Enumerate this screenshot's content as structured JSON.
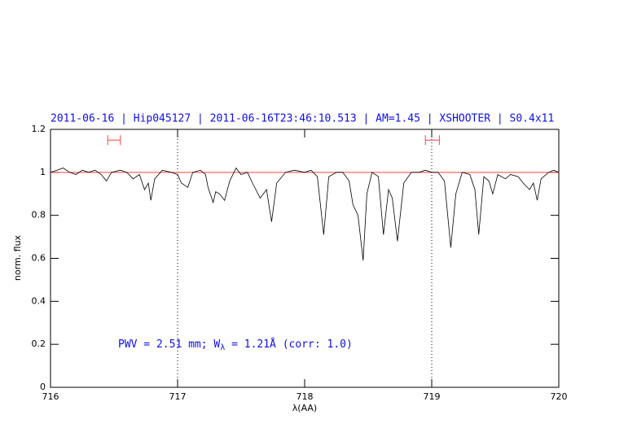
{
  "chart_data": {
    "type": "line",
    "title": "2011-06-16 | Hip045127 | 2011-06-16T23:46:10.513 | AM=1.45 | XSHOOTER | S0.4x11",
    "x_label": "λ(AA)",
    "y_label": "norm. flux",
    "annotation": {
      "text": "PWV = 2.51 mm; W",
      "subscript": "λ",
      "rest": " = 1.21Å (corr: 1.0)"
    },
    "color": "#000000",
    "x": [
      716.0,
      716.05,
      716.1,
      716.15,
      716.2,
      716.25,
      716.3,
      716.35,
      716.4,
      716.44,
      716.48,
      716.55,
      716.6,
      716.65,
      716.7,
      716.74,
      716.77,
      716.79,
      716.82,
      716.88,
      716.95,
      717.0,
      717.03,
      717.08,
      717.12,
      717.18,
      717.22,
      717.24,
      717.28,
      717.3,
      717.33,
      717.37,
      717.41,
      717.46,
      717.5,
      717.55,
      717.59,
      717.65,
      717.7,
      717.74,
      717.78,
      717.85,
      717.92,
      718.0,
      718.05,
      718.1,
      718.15,
      718.19,
      718.25,
      718.3,
      718.35,
      718.38,
      718.42,
      718.46,
      718.49,
      718.53,
      718.58,
      718.62,
      718.66,
      718.69,
      718.73,
      718.78,
      718.84,
      718.9,
      718.95,
      719.0,
      719.05,
      719.1,
      719.15,
      719.19,
      719.24,
      719.3,
      719.34,
      719.37,
      719.41,
      719.45,
      719.48,
      719.52,
      719.58,
      719.62,
      719.68,
      719.72,
      719.77,
      719.8,
      719.83,
      719.86,
      719.92,
      719.96,
      720.0
    ],
    "values": [
      1.0,
      1.01,
      1.02,
      1.0,
      0.99,
      1.01,
      1.0,
      1.01,
      0.99,
      0.96,
      1.0,
      1.01,
      1.0,
      0.97,
      0.99,
      0.92,
      0.95,
      0.87,
      0.97,
      1.01,
      1.0,
      0.99,
      0.95,
      0.93,
      1.0,
      1.01,
      0.99,
      0.93,
      0.86,
      0.91,
      0.9,
      0.87,
      0.96,
      1.02,
      0.99,
      1.0,
      0.95,
      0.88,
      0.92,
      0.77,
      0.95,
      1.0,
      1.01,
      1.0,
      1.01,
      0.98,
      0.71,
      0.98,
      1.0,
      1.0,
      0.96,
      0.85,
      0.8,
      0.59,
      0.9,
      1.0,
      0.98,
      0.71,
      0.92,
      0.88,
      0.68,
      0.95,
      1.0,
      1.0,
      1.01,
      1.0,
      1.0,
      0.96,
      0.65,
      0.9,
      1.0,
      0.99,
      0.92,
      0.71,
      0.98,
      0.96,
      0.9,
      0.99,
      0.97,
      0.99,
      0.98,
      0.95,
      0.92,
      0.95,
      0.87,
      0.97,
      1.0,
      1.01,
      1.0
    ],
    "reference_line": {
      "y": 1,
      "color": "#ff4040"
    },
    "vlines": [
      717,
      719
    ],
    "markers": [
      {
        "from": 716.45,
        "to": 716.55,
        "y": 1.15
      },
      {
        "from": 718.95,
        "to": 719.06,
        "y": 1.15
      }
    ],
    "marker_color": "#ff4040",
    "xlim": [
      716,
      720
    ],
    "xticks": [
      716,
      717,
      718,
      719,
      720
    ],
    "ylim": [
      0,
      1.2
    ],
    "yticks": [
      0,
      0.2,
      0.4,
      0.6,
      0.8,
      1,
      1.2
    ]
  }
}
